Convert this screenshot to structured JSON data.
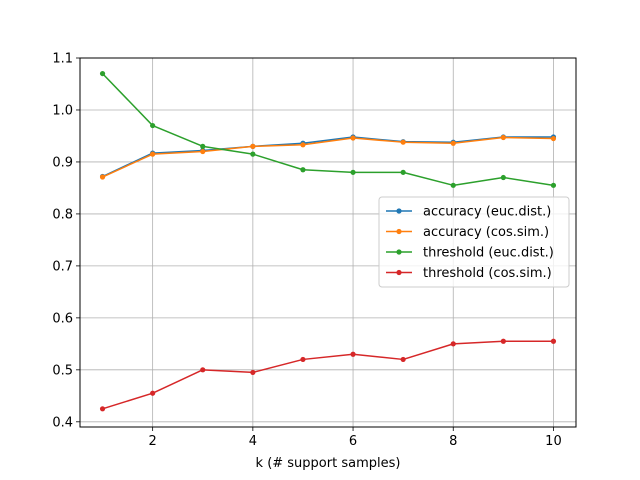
{
  "chart_data": {
    "type": "line",
    "title": "",
    "xlabel": "k (# support samples)",
    "ylabel": "",
    "xlim": [
      0.55,
      10.45
    ],
    "ylim": [
      0.39,
      1.1
    ],
    "xticks": [
      2,
      4,
      6,
      8,
      10
    ],
    "yticks": [
      0.4,
      0.5,
      0.6,
      0.7,
      0.8,
      0.9,
      1.0,
      1.1
    ],
    "grid": true,
    "legend_position": "center-right",
    "x": [
      1,
      2,
      3,
      4,
      5,
      6,
      7,
      8,
      9,
      10
    ],
    "series": [
      {
        "name": "accuracy (euc.dist.)",
        "color": "#1f77b4",
        "values": [
          0.872,
          0.917,
          0.922,
          0.93,
          0.936,
          0.948,
          0.939,
          0.938,
          0.948,
          0.948
        ]
      },
      {
        "name": "accuracy (cos.sim.)",
        "color": "#ff7f0e",
        "values": [
          0.871,
          0.915,
          0.92,
          0.93,
          0.933,
          0.946,
          0.938,
          0.936,
          0.947,
          0.945
        ]
      },
      {
        "name": "threshold (euc.dist.)",
        "color": "#2ca02c",
        "values": [
          1.07,
          0.97,
          0.93,
          0.915,
          0.885,
          0.88,
          0.88,
          0.855,
          0.87,
          0.855
        ]
      },
      {
        "name": "threshold (cos.sim.)",
        "color": "#d62728",
        "values": [
          0.425,
          0.455,
          0.5,
          0.495,
          0.52,
          0.53,
          0.52,
          0.55,
          0.555,
          0.555
        ]
      }
    ]
  }
}
